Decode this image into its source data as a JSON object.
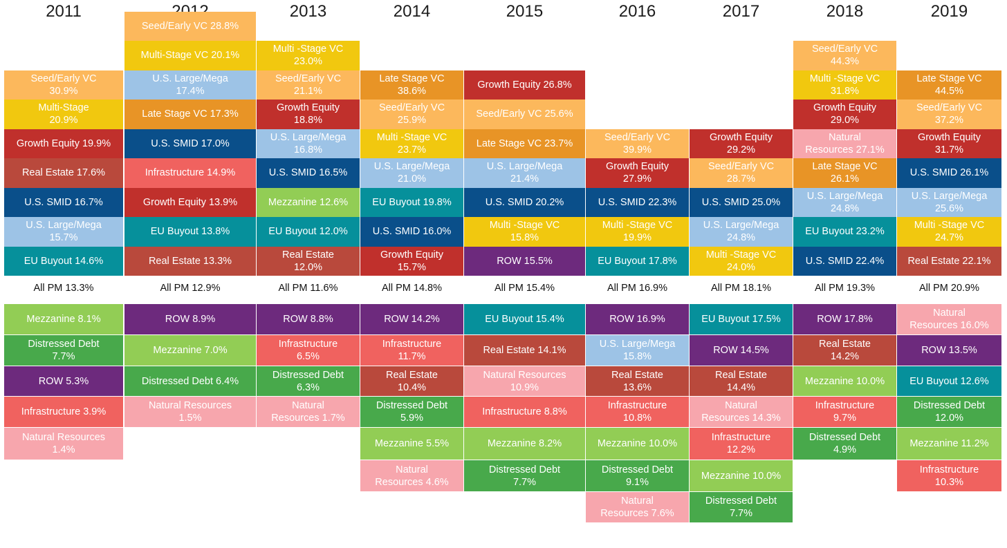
{
  "chart_data": {
    "type": "table",
    "title": "",
    "categories": [
      "2011",
      "2012",
      "2013",
      "2014",
      "2015",
      "2016",
      "2017",
      "2018",
      "2019"
    ],
    "colors": {
      "Seed/Early VC": "#fcb85c",
      "Multi-Stage VC": "#f1c80f",
      "Late Stage VC": "#e89426",
      "Growth Equity": "#c0302c",
      "U.S. Large/Mega": "#9dc3e6",
      "U.S. SMID": "#0a4f8a",
      "EU Buyout": "#06909b",
      "Real Estate": "#b9493c",
      "Infrastructure": "#f0625f",
      "Mezzanine": "#92cd55",
      "Distressed Debt": "#48a94b",
      "ROW": "#6d2a7d",
      "Natural Resources": "#f7a6ad"
    },
    "columns": [
      {
        "year": "2011",
        "above": [
          {
            "label": "Seed/Early VC\n30.9%",
            "asset": "Seed/Early VC",
            "value": 30.9
          },
          {
            "label": "Multi-Stage\n20.9%",
            "asset": "Multi-Stage VC",
            "value": 20.9
          },
          {
            "label": "Growth Equity 19.9%",
            "asset": "Growth Equity",
            "value": 19.9
          },
          {
            "label": "Real Estate 17.6%",
            "asset": "Real Estate",
            "value": 17.6
          },
          {
            "label": "U.S. SMID 16.7%",
            "asset": "U.S. SMID",
            "value": 16.7
          },
          {
            "label": "U.S. Large/Mega\n15.7%",
            "asset": "U.S. Large/Mega",
            "value": 15.7
          },
          {
            "label": "EU Buyout 14.6%",
            "asset": "EU Buyout",
            "value": 14.6
          }
        ],
        "all_pm": "All PM 13.3%",
        "all_pm_value": 13.3,
        "below": [
          {
            "label": "Mezzanine 8.1%",
            "asset": "Mezzanine",
            "value": 8.1
          },
          {
            "label": "Distressed Debt\n7.7%",
            "asset": "Distressed Debt",
            "value": 7.7
          },
          {
            "label": "ROW 5.3%",
            "asset": "ROW",
            "value": 5.3
          },
          {
            "label": "Infrastructure 3.9%",
            "asset": "Infrastructure",
            "value": 3.9
          },
          {
            "label": "Natural Resources\n1.4%",
            "asset": "Natural Resources",
            "value": 1.4
          }
        ]
      },
      {
        "year": "2012",
        "above": [
          {
            "label": "Seed/Early VC 28.8%",
            "asset": "Seed/Early VC",
            "value": 28.8
          },
          {
            "label": "Multi-Stage VC 20.1%",
            "asset": "Multi-Stage VC",
            "value": 20.1
          },
          {
            "label": "U.S. Large/Mega\n17.4%",
            "asset": "U.S. Large/Mega",
            "value": 17.4
          },
          {
            "label": "Late Stage VC 17.3%",
            "asset": "Late Stage VC",
            "value": 17.3
          },
          {
            "label": "U.S. SMID 17.0%",
            "asset": "U.S. SMID",
            "value": 17.0
          },
          {
            "label": "Infrastructure 14.9%",
            "asset": "Infrastructure",
            "value": 14.9
          },
          {
            "label": "Growth Equity 13.9%",
            "asset": "Growth Equity",
            "value": 13.9
          },
          {
            "label": "EU Buyout 13.8%",
            "asset": "EU Buyout",
            "value": 13.8
          },
          {
            "label": "Real Estate 13.3%",
            "asset": "Real Estate",
            "value": 13.3
          }
        ],
        "all_pm": "All PM 12.9%",
        "all_pm_value": 12.9,
        "below": [
          {
            "label": "ROW 8.9%",
            "asset": "ROW",
            "value": 8.9
          },
          {
            "label": "Mezzanine 7.0%",
            "asset": "Mezzanine",
            "value": 7.0
          },
          {
            "label": "Distressed Debt 6.4%",
            "asset": "Distressed Debt",
            "value": 6.4
          },
          {
            "label": "Natural Resources\n1.5%",
            "asset": "Natural Resources",
            "value": 1.5
          }
        ]
      },
      {
        "year": "2013",
        "above": [
          {
            "label": "Multi -Stage VC\n23.0%",
            "asset": "Multi-Stage VC",
            "value": 23.0
          },
          {
            "label": "Seed/Early VC\n21.1%",
            "asset": "Seed/Early VC",
            "value": 21.1
          },
          {
            "label": "Growth Equity\n18.8%",
            "asset": "Growth Equity",
            "value": 18.8
          },
          {
            "label": "U.S. Large/Mega\n16.8%",
            "asset": "U.S. Large/Mega",
            "value": 16.8
          },
          {
            "label": "U.S. SMID 16.5%",
            "asset": "U.S. SMID",
            "value": 16.5
          },
          {
            "label": "Mezzanine 12.6%",
            "asset": "Mezzanine",
            "value": 12.6
          },
          {
            "label": "EU Buyout 12.0%",
            "asset": "EU Buyout",
            "value": 12.0
          },
          {
            "label": "Real Estate\n12.0%",
            "asset": "Real Estate",
            "value": 12.0
          }
        ],
        "all_pm": "All PM 11.6%",
        "all_pm_value": 11.6,
        "below": [
          {
            "label": "ROW 8.8%",
            "asset": "ROW",
            "value": 8.8
          },
          {
            "label": "Infrastructure\n6.5%",
            "asset": "Infrastructure",
            "value": 6.5
          },
          {
            "label": "Distressed Debt\n6.3%",
            "asset": "Distressed Debt",
            "value": 6.3
          },
          {
            "label": "Natural\nResources 1.7%",
            "asset": "Natural Resources",
            "value": 1.7
          }
        ]
      },
      {
        "year": "2014",
        "above": [
          {
            "label": "Late Stage VC\n38.6%",
            "asset": "Late Stage VC",
            "value": 38.6
          },
          {
            "label": "Seed/Early VC\n25.9%",
            "asset": "Seed/Early VC",
            "value": 25.9
          },
          {
            "label": "Multi -Stage VC\n23.7%",
            "asset": "Multi-Stage VC",
            "value": 23.7
          },
          {
            "label": "U.S. Large/Mega\n21.0%",
            "asset": "U.S. Large/Mega",
            "value": 21.0
          },
          {
            "label": "EU Buyout 19.8%",
            "asset": "EU Buyout",
            "value": 19.8
          },
          {
            "label": "U.S. SMID 16.0%",
            "asset": "U.S. SMID",
            "value": 16.0
          },
          {
            "label": "Growth Equity\n15.7%",
            "asset": "Growth Equity",
            "value": 15.7
          }
        ],
        "all_pm": "All PM 14.8%",
        "all_pm_value": 14.8,
        "below": [
          {
            "label": "ROW 14.2%",
            "asset": "ROW",
            "value": 14.2
          },
          {
            "label": "Infrastructure\n11.7%",
            "asset": "Infrastructure",
            "value": 11.7
          },
          {
            "label": "Real Estate\n10.4%",
            "asset": "Real Estate",
            "value": 10.4
          },
          {
            "label": "Distressed Debt\n5.9%",
            "asset": "Distressed Debt",
            "value": 5.9
          },
          {
            "label": "Mezzanine 5.5%",
            "asset": "Mezzanine",
            "value": 5.5
          },
          {
            "label": "Natural\nResources 4.6%",
            "asset": "Natural Resources",
            "value": 4.6
          }
        ]
      },
      {
        "year": "2015",
        "above": [
          {
            "label": "Growth Equity 26.8%",
            "asset": "Growth Equity",
            "value": 26.8
          },
          {
            "label": "Seed/Early VC 25.6%",
            "asset": "Seed/Early VC",
            "value": 25.6
          },
          {
            "label": "Late Stage VC 23.7%",
            "asset": "Late Stage VC",
            "value": 23.7
          },
          {
            "label": "U.S. Large/Mega\n21.4%",
            "asset": "U.S. Large/Mega",
            "value": 21.4
          },
          {
            "label": "U.S. SMID 20.2%",
            "asset": "U.S. SMID",
            "value": 20.2
          },
          {
            "label": "Multi -Stage VC\n15.8%",
            "asset": "Multi-Stage VC",
            "value": 15.8
          },
          {
            "label": "ROW 15.5%",
            "asset": "ROW",
            "value": 15.5
          }
        ],
        "all_pm": "All PM 15.4%",
        "all_pm_value": 15.4,
        "below": [
          {
            "label": "EU Buyout 15.4%",
            "asset": "EU Buyout",
            "value": 15.4
          },
          {
            "label": "Real Estate 14.1%",
            "asset": "Real Estate",
            "value": 14.1
          },
          {
            "label": "Natural Resources\n10.9%",
            "asset": "Natural Resources",
            "value": 10.9
          },
          {
            "label": "Infrastructure 8.8%",
            "asset": "Infrastructure",
            "value": 8.8
          },
          {
            "label": "Mezzanine 8.2%",
            "asset": "Mezzanine",
            "value": 8.2
          },
          {
            "label": "Distressed Debt\n7.7%",
            "asset": "Distressed Debt",
            "value": 7.7
          }
        ]
      },
      {
        "year": "2016",
        "above": [
          {
            "label": "Seed/Early VC\n39.9%",
            "asset": "Seed/Early VC",
            "value": 39.9
          },
          {
            "label": "Growth Equity\n27.9%",
            "asset": "Growth Equity",
            "value": 27.9
          },
          {
            "label": "U.S. SMID 22.3%",
            "asset": "U.S. SMID",
            "value": 22.3
          },
          {
            "label": "Multi -Stage VC\n19.9%",
            "asset": "Multi-Stage VC",
            "value": 19.9
          },
          {
            "label": "EU Buyout 17.8%",
            "asset": "EU Buyout",
            "value": 17.8
          }
        ],
        "all_pm": "All PM 16.9%",
        "all_pm_value": 16.9,
        "below": [
          {
            "label": "ROW 16.9%",
            "asset": "ROW",
            "value": 16.9
          },
          {
            "label": "U.S. Large/Mega\n15.8%",
            "asset": "U.S. Large/Mega",
            "value": 15.8
          },
          {
            "label": "Real Estate\n13.6%",
            "asset": "Real Estate",
            "value": 13.6
          },
          {
            "label": "Infrastructure\n10.8%",
            "asset": "Infrastructure",
            "value": 10.8
          },
          {
            "label": "Mezzanine 10.0%",
            "asset": "Mezzanine",
            "value": 10.0
          },
          {
            "label": "Distressed Debt\n9.1%",
            "asset": "Distressed Debt",
            "value": 9.1
          },
          {
            "label": "Natural\nResources 7.6%",
            "asset": "Natural Resources",
            "value": 7.6
          }
        ]
      },
      {
        "year": "2017",
        "above": [
          {
            "label": "Growth Equity\n29.2%",
            "asset": "Growth Equity",
            "value": 29.2
          },
          {
            "label": "Seed/Early VC\n28.7%",
            "asset": "Seed/Early VC",
            "value": 28.7
          },
          {
            "label": "U.S. SMID 25.0%",
            "asset": "U.S. SMID",
            "value": 25.0
          },
          {
            "label": "U.S. Large/Mega\n24.8%",
            "asset": "U.S. Large/Mega",
            "value": 24.8
          },
          {
            "label": "Multi -Stage VC\n24.0%",
            "asset": "Multi-Stage VC",
            "value": 24.0
          }
        ],
        "all_pm": "All PM 18.1%",
        "all_pm_value": 18.1,
        "below": [
          {
            "label": "EU Buyout 17.5%",
            "asset": "EU Buyout",
            "value": 17.5
          },
          {
            "label": "ROW 14.5%",
            "asset": "ROW",
            "value": 14.5
          },
          {
            "label": "Real Estate\n14.4%",
            "asset": "Real Estate",
            "value": 14.4
          },
          {
            "label": "Natural\nResources 14.3%",
            "asset": "Natural Resources",
            "value": 14.3
          },
          {
            "label": "Infrastructure\n12.2%",
            "asset": "Infrastructure",
            "value": 12.2
          },
          {
            "label": "Mezzanine 10.0%",
            "asset": "Mezzanine",
            "value": 10.0
          },
          {
            "label": "Distressed Debt\n7.7%",
            "asset": "Distressed Debt",
            "value": 7.7
          }
        ]
      },
      {
        "year": "2018",
        "above": [
          {
            "label": "Seed/Early VC\n44.3%",
            "asset": "Seed/Early VC",
            "value": 44.3
          },
          {
            "label": "Multi -Stage VC\n31.8%",
            "asset": "Multi-Stage VC",
            "value": 31.8
          },
          {
            "label": "Growth Equity\n29.0%",
            "asset": "Growth Equity",
            "value": 29.0
          },
          {
            "label": "Natural\nResources 27.1%",
            "asset": "Natural Resources",
            "value": 27.1
          },
          {
            "label": "Late Stage VC\n26.1%",
            "asset": "Late Stage VC",
            "value": 26.1
          },
          {
            "label": "U.S. Large/Mega\n24.8%",
            "asset": "U.S. Large/Mega",
            "value": 24.8
          },
          {
            "label": "EU Buyout 23.2%",
            "asset": "EU Buyout",
            "value": 23.2
          },
          {
            "label": "U.S. SMID 22.4%",
            "asset": "U.S. SMID",
            "value": 22.4
          }
        ],
        "all_pm": "All PM 19.3%",
        "all_pm_value": 19.3,
        "below": [
          {
            "label": "ROW 17.8%",
            "asset": "ROW",
            "value": 17.8
          },
          {
            "label": "Real Estate\n14.2%",
            "asset": "Real Estate",
            "value": 14.2
          },
          {
            "label": "Mezzanine 10.0%",
            "asset": "Mezzanine",
            "value": 10.0
          },
          {
            "label": "Infrastructure\n9.7%",
            "asset": "Infrastructure",
            "value": 9.7
          },
          {
            "label": "Distressed Debt\n4.9%",
            "asset": "Distressed Debt",
            "value": 4.9
          }
        ]
      },
      {
        "year": "2019",
        "above": [
          {
            "label": "Late Stage VC\n44.5%",
            "asset": "Late Stage VC",
            "value": 44.5
          },
          {
            "label": "Seed/Early VC\n37.2%",
            "asset": "Seed/Early VC",
            "value": 37.2
          },
          {
            "label": "Growth Equity\n31.7%",
            "asset": "Growth Equity",
            "value": 31.7
          },
          {
            "label": "U.S. SMID 26.1%",
            "asset": "U.S. SMID",
            "value": 26.1
          },
          {
            "label": "U.S. Large/Mega\n25.6%",
            "asset": "U.S. Large/Mega",
            "value": 25.6
          },
          {
            "label": "Multi -Stage VC\n24.7%",
            "asset": "Multi-Stage VC",
            "value": 24.7
          },
          {
            "label": "Real Estate 22.1%",
            "asset": "Real Estate",
            "value": 22.1
          }
        ],
        "all_pm": "All PM 20.9%",
        "all_pm_value": 20.9,
        "below": [
          {
            "label": "Natural\nResources 16.0%",
            "asset": "Natural Resources",
            "value": 16.0
          },
          {
            "label": "ROW 13.5%",
            "asset": "ROW",
            "value": 13.5
          },
          {
            "label": "EU Buyout 12.6%",
            "asset": "EU Buyout",
            "value": 12.6
          },
          {
            "label": "Distressed Debt\n12.0%",
            "asset": "Distressed Debt",
            "value": 12.0
          },
          {
            "label": "Mezzanine 11.2%",
            "asset": "Mezzanine",
            "value": 11.2
          },
          {
            "label": "Infrastructure\n10.3%",
            "asset": "Infrastructure",
            "value": 10.3
          }
        ]
      }
    ]
  }
}
